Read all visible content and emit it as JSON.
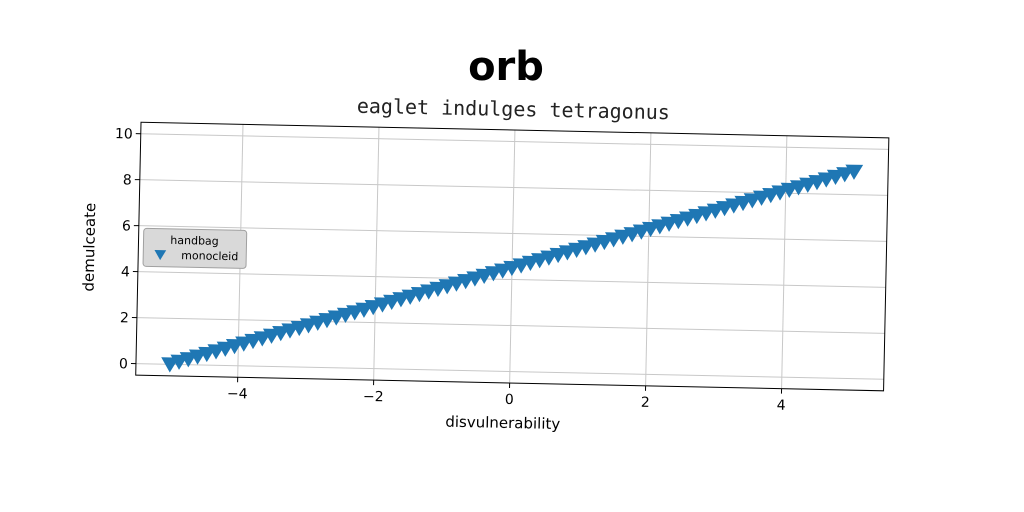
{
  "page": {
    "suptitle": "orb"
  },
  "chart_data": {
    "type": "scatter",
    "title": "eaglet indulges tetragonus",
    "xlabel": "disvulnerability",
    "ylabel": "demulceate",
    "xlim": [
      -5.5,
      5.5
    ],
    "ylim": [
      -0.5,
      10.5
    ],
    "xticks": [
      -4,
      -2,
      0,
      2,
      4
    ],
    "xtick_labels": [
      "−4",
      "−2",
      "0",
      "2",
      "4"
    ],
    "yticks": [
      0,
      2,
      4,
      6,
      8,
      10
    ],
    "ytick_labels": [
      "0",
      "2",
      "4",
      "6",
      "8",
      "10"
    ],
    "grid": true,
    "legend": {
      "title": "handbag",
      "placement": "center-left",
      "entries": [
        "monocleid"
      ]
    },
    "series": [
      {
        "name": "monocleid",
        "marker": "triangle-down",
        "color": "#1f77b4",
        "x_start": -5.0,
        "x_end": 5.0,
        "count": 75,
        "y_start": 0.0,
        "y_end": 9.0
      }
    ]
  }
}
